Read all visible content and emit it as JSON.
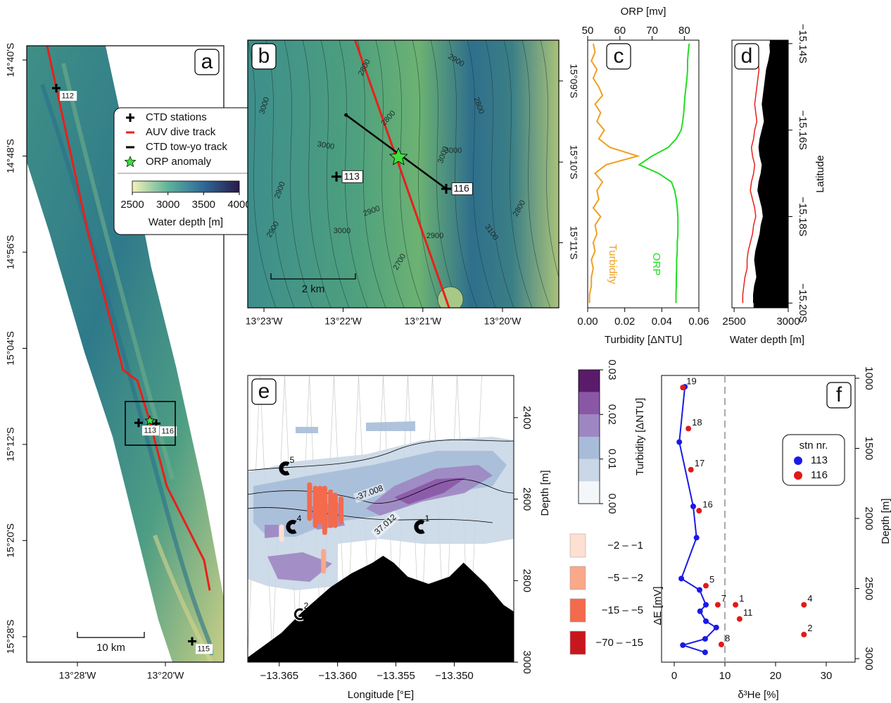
{
  "chart_data": [
    {
      "type": "map",
      "label": "a",
      "xlim": [
        -13.5435,
        -13.2448
      ],
      "xticks": [
        {
          "value": -13.4667,
          "label": "13°28'W"
        },
        {
          "value": -13.3333,
          "label": "13°20'W"
        }
      ],
      "ylim": [
        -14.647,
        -15.502
      ],
      "yticks": [
        {
          "value": -14.6667,
          "label": "14°40'S"
        },
        {
          "value": -14.8,
          "label": "14°48'S"
        },
        {
          "value": -14.9333,
          "label": "14°56'S"
        },
        {
          "value": -15.0667,
          "label": "15°04'S"
        },
        {
          "value": -15.2,
          "label": "15°12'S"
        },
        {
          "value": -15.3333,
          "label": "15°20'S"
        },
        {
          "value": -15.4667,
          "label": "15°28'S"
        }
      ],
      "track": {
        "color": "#e8201a",
        "lon": [
          -13.5126,
          -13.4507,
          -13.3974,
          -13.376,
          -13.3579,
          -13.3312,
          -13.2747,
          -13.2661
        ],
        "lat": [
          -14.647,
          -14.906,
          -15.0967,
          -15.1113,
          -15.1651,
          -15.258,
          -15.3606,
          -15.4026
        ]
      },
      "stations": {
        "names": [
          "112",
          "113",
          "116",
          "115"
        ],
        "lon": [
          -13.4987,
          -13.3739,
          -13.3472,
          -13.2928
        ],
        "lat": [
          -14.7057,
          -15.17,
          -15.171,
          -15.473
        ]
      },
      "orp_anomaly": {
        "color": "#3de03d",
        "lon": -13.3568,
        "lat": -15.1671
      },
      "scale_bar": "10 km",
      "legend": [
        "CTD stations",
        "AUV dive track",
        "CTD tow-yo track",
        "ORP anomaly"
      ],
      "colorbar": {
        "title": "Water depth [m]",
        "lim": [
          2500,
          4000
        ],
        "ticks": [
          2500,
          3000,
          3500,
          4000
        ]
      }
    },
    {
      "type": "map",
      "label": "b",
      "xlim": [
        -13.3867,
        -13.3215
      ],
      "xticks": [
        {
          "value": -13.3833,
          "label": "13°23'W"
        },
        {
          "value": -13.3667,
          "label": "13°22'W"
        },
        {
          "value": -13.35,
          "label": "13°21'W"
        },
        {
          "value": -13.3333,
          "label": "13°20'W"
        }
      ],
      "ylim": [
        -15.1416,
        -15.1967
      ],
      "yticks": [
        {
          "value": -15.15,
          "label": "15°09'S"
        },
        {
          "value": -15.1667,
          "label": "15°10'S"
        },
        {
          "value": -15.1833,
          "label": "15°11'S"
        }
      ],
      "track": {
        "color": "#e8201a",
        "lon": [
          -13.3642,
          -13.3445
        ],
        "lat": [
          -15.1416,
          -15.1967
        ]
      },
      "towyo": {
        "color": "#000000",
        "lon": [
          -13.3661,
          -13.3451
        ],
        "lat": [
          -15.157,
          -15.1722
        ]
      },
      "stations": {
        "names": [
          "113",
          "116"
        ],
        "lon": [
          -13.3681,
          -13.3451
        ],
        "lat": [
          -15.1697,
          -15.1722
        ]
      },
      "orp_anomaly": {
        "color": "#3de03d",
        "lon": -13.3551,
        "lat": -15.1657
      },
      "scale_bar": "2 km",
      "contour_labels": [
        "2800",
        "2900",
        "3000",
        "2800",
        "3000",
        "3000",
        "2900",
        "2900",
        "2800",
        "3000",
        "2900",
        "3100",
        "2700",
        "2900",
        "3000",
        "2800"
      ]
    },
    {
      "type": "line",
      "label": "c",
      "y": [
        -15.14,
        -15.142,
        -15.144,
        -15.146,
        -15.148,
        -15.15,
        -15.152,
        -15.154,
        -15.156,
        -15.158,
        -15.16,
        -15.162,
        -15.164,
        -15.166,
        -15.168,
        -15.17,
        -15.172,
        -15.174,
        -15.176,
        -15.178,
        -15.18,
        -15.182,
        -15.184,
        -15.186,
        -15.188,
        -15.19,
        -15.192,
        -15.194,
        -15.196,
        -15.198,
        -15.2
      ],
      "ylim": [
        -15.1392,
        -15.2011
      ],
      "xlim": [
        0,
        0.06
      ],
      "xticks": [
        {
          "value": 0,
          "label": "0.00"
        },
        {
          "value": 0.02,
          "label": "0.02"
        },
        {
          "value": 0.04,
          "label": "0.04"
        },
        {
          "value": 0.06,
          "label": "0.06"
        }
      ],
      "xlabel": "Turbidity [ΔNTU]",
      "x2lim": [
        50,
        84.5
      ],
      "x2ticks": [
        50,
        60,
        70,
        80
      ],
      "x2label": "ORP [mv]",
      "series": [
        {
          "name": "Turbidity",
          "color": "#f0a020",
          "values": [
            0.003,
            0.004,
            0.002,
            0.005,
            0.003,
            0.006,
            0.008,
            0.004,
            0.007,
            0.005,
            0.009,
            0.006,
            0.012,
            0.027,
            0.01,
            0.004,
            0.008,
            0.005,
            0.006,
            0.003,
            0.007,
            0.004,
            0.005,
            0.003,
            0.004,
            0.002,
            0.003,
            0.002,
            0.002,
            0.001,
            0.001
          ]
        },
        {
          "name": "ORP",
          "color": "#22dd22",
          "axis": "x2",
          "values": [
            81.5,
            81.2,
            81,
            81,
            80.8,
            80.5,
            80.2,
            80,
            79.8,
            79.5,
            79,
            77.5,
            75,
            70,
            66,
            72,
            76,
            77,
            77.5,
            77.8,
            78,
            78,
            78,
            77.8,
            77.8,
            77.6,
            77.6,
            77.5,
            77.5,
            77.4,
            77.4
          ]
        }
      ]
    },
    {
      "type": "area",
      "label": "d",
      "y": [
        -15.14,
        -15.142,
        -15.144,
        -15.146,
        -15.148,
        -15.15,
        -15.152,
        -15.154,
        -15.156,
        -15.158,
        -15.16,
        -15.162,
        -15.164,
        -15.166,
        -15.168,
        -15.17,
        -15.172,
        -15.174,
        -15.176,
        -15.178,
        -15.18,
        -15.182,
        -15.184,
        -15.186,
        -15.188,
        -15.19,
        -15.192,
        -15.194,
        -15.196,
        -15.198,
        -15.2
      ],
      "ylim": [
        -15.1392,
        -15.2011
      ],
      "yticks": [
        {
          "value": -15.14,
          "label": "−15.14S"
        },
        {
          "value": -15.16,
          "label": "−15.16S"
        },
        {
          "value": -15.18,
          "label": "−15.18S"
        },
        {
          "value": -15.2,
          "label": "−15.20S"
        }
      ],
      "ylabel": "Latitude",
      "xlim": [
        2480,
        3000
      ],
      "xticks": [
        2500,
        3000
      ],
      "xlabel": "Water depth [m]",
      "series": [
        {
          "color": "#000000",
          "fill": true,
          "values": [
            2830,
            2835,
            2820,
            2800,
            2790,
            2780,
            2770,
            2760,
            2770,
            2780,
            2760,
            2740,
            2730,
            2740,
            2760,
            2750,
            2730,
            2720,
            2740,
            2760,
            2770,
            2750,
            2740,
            2720,
            2700,
            2690,
            2700,
            2710,
            2690,
            2680,
            2680
          ]
        },
        {
          "color": "#e8201a",
          "values": [
            2700,
            2690,
            2720,
            2730,
            2720,
            2710,
            2700,
            2690,
            2700,
            2710,
            2690,
            2680,
            2660,
            2670,
            2690,
            2680,
            2660,
            2650,
            2670,
            2690,
            2700,
            2680,
            2670,
            2650,
            2630,
            2620,
            2620,
            2600,
            2590,
            2580,
            2580
          ]
        }
      ]
    },
    {
      "type": "section",
      "label": "e",
      "xlim": [
        -13.3677,
        -13.3449
      ],
      "xticks": [
        {
          "value": -13.365,
          "label": "−13.365"
        },
        {
          "value": -13.36,
          "label": "−13.360"
        },
        {
          "value": -13.355,
          "label": "−13.355"
        },
        {
          "value": -13.35,
          "label": "−13.350"
        }
      ],
      "xlabel": "Longitude  [°E]",
      "ylim": [
        2296.5,
        3000
      ],
      "yticks": [
        2400,
        2600,
        2800,
        3000
      ],
      "ylabel": "Depth [m]",
      "seafloor": {
        "lon": [
          -13.3677,
          -13.3648,
          -13.363,
          -13.3606,
          -13.3588,
          -13.357,
          -13.3561,
          -13.3552,
          -13.354,
          -13.3522,
          -13.3504,
          -13.3492,
          -13.3473,
          -13.3458,
          -13.3449
        ],
        "depth": [
          2989.5,
          2929,
          2877,
          2817,
          2783,
          2757,
          2740,
          2757,
          2791,
          2809,
          2791,
          2757,
          2809,
          2860,
          2877
        ]
      },
      "orp": {
        "lon": [
          -13.3624,
          -13.3619,
          -13.3615,
          -13.3611,
          -13.3606,
          -13.3602,
          -13.3597,
          -13.3648,
          -13.3612
        ],
        "top": [
          2558.5,
          2567,
          2567,
          2567,
          2576,
          2584,
          2593,
          2662,
          2722
        ],
        "bottom": [
          2653.4,
          2671,
          2662,
          2688,
          2671,
          2671,
          2662,
          2705,
          2783
        ],
        "dE": [
          -10,
          -12,
          -8,
          -10,
          -6,
          -5.5,
          -7,
          -1.5,
          -3
        ]
      },
      "contour_labels": [
        "-37.008",
        "37.012"
      ],
      "tow_labels": [
        "5",
        "4",
        "1",
        "2"
      ],
      "colorbar": {
        "title": "Turbidity [ΔNTU]",
        "lim": [
          0,
          0.03
        ],
        "ticks": [
          {
            "value": 0,
            "label": "0.00"
          },
          {
            "value": 0.01,
            "label": "0.01"
          },
          {
            "value": 0.02,
            "label": "0.02"
          },
          {
            "value": 0.03,
            "label": "0.03"
          }
        ],
        "colors": [
          "#f4f7f9",
          "#c9d7e6",
          "#a6bcd8",
          "#9e86c2",
          "#8a56a6",
          "#5a1c6a"
        ]
      },
      "orp_legend": {
        "title": "ΔE [mV]",
        "labels": [
          "−2 – −1",
          "−5 – −2",
          "−15 – −5",
          "−70 – −15"
        ],
        "bins": [
          -1,
          -2,
          -5,
          -15,
          -70
        ],
        "colors": [
          "#fde0d2",
          "#f9a88a",
          "#f36a4d",
          "#c8161d"
        ]
      }
    },
    {
      "type": "scatter",
      "label": "f",
      "xlim": [
        -2.5,
        35.7
      ],
      "xticks": [
        0,
        10,
        20,
        30
      ],
      "xlabel": "δ³He [%]",
      "ylim": [
        980,
        3025
      ],
      "yticks": [
        1000,
        1500,
        2000,
        2500,
        3000
      ],
      "ylabel": "Depth [m]",
      "reference_x": 10,
      "legend_title": "stn nr.",
      "series": [
        {
          "name": "113",
          "color": "#1a1ae6",
          "line": true,
          "x": [
            2.1,
            1,
            3.75,
            4.4,
            1.4,
            5,
            6.25,
            5.1,
            6.25,
            8.3,
            6.1,
            1.7,
            6.1
          ],
          "values": [
            1061,
            1455,
            1914,
            2137,
            2429,
            2510,
            2616,
            2662,
            2733,
            2778,
            2859,
            2904,
            2955
          ]
        },
        {
          "name": "116",
          "color": "#e01a1a",
          "x": [
            1.7,
            2.8,
            3.3,
            4.9,
            6.25,
            8.6,
            12.1,
            25.6,
            12.9,
            25.6,
            9.3
          ],
          "values": [
            1066,
            1359,
            1652,
            1945,
            2480,
            2616,
            2616,
            2616,
            2717,
            2828,
            2899
          ],
          "labels": [
            "19",
            "18",
            "17",
            "16",
            "5",
            "7",
            "1",
            "4",
            "11",
            "2",
            "8"
          ]
        }
      ]
    }
  ]
}
